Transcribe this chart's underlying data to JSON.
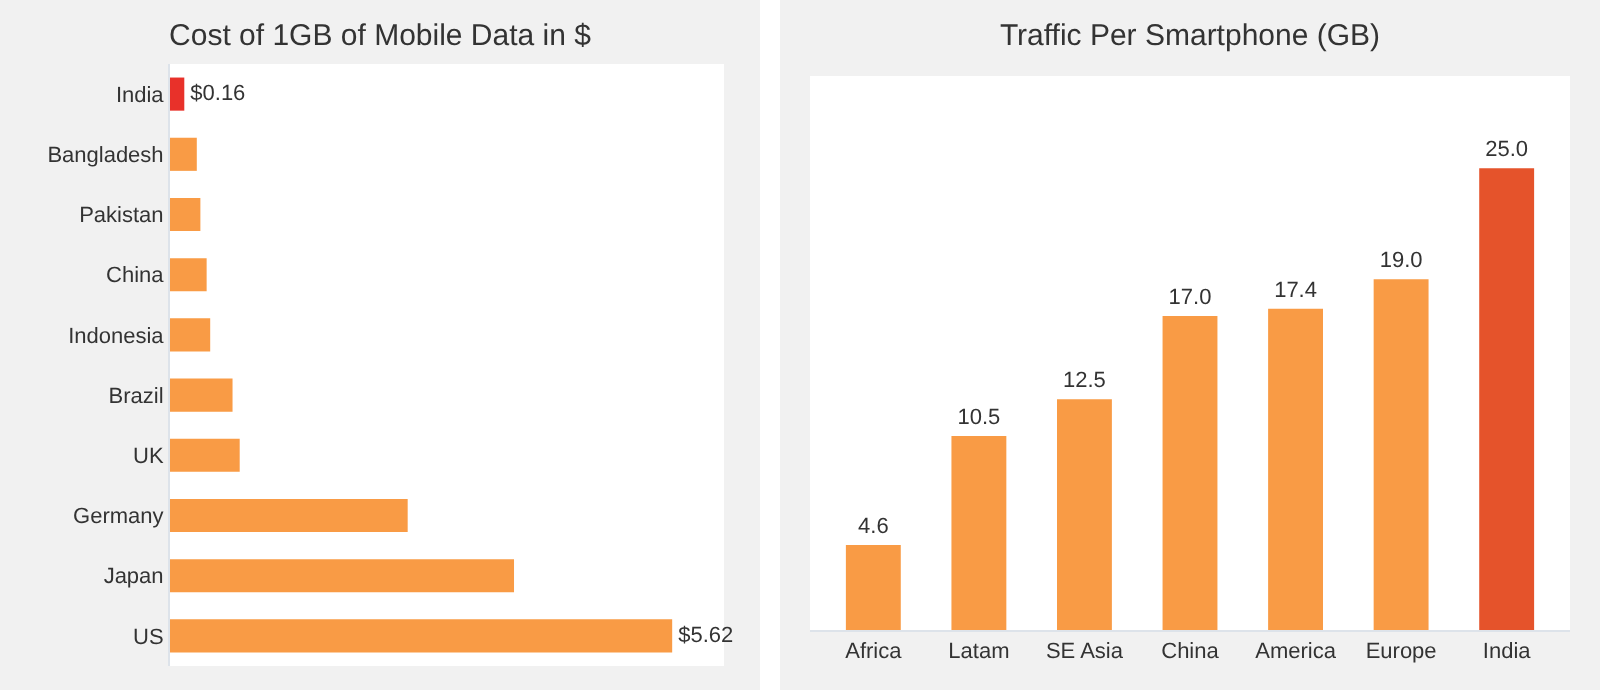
{
  "chart_data": [
    {
      "type": "bar",
      "title": "Cost of 1GB of Mobile Data in $",
      "orientation": "horizontal",
      "categories": [
        "India",
        "Bangladesh",
        "Pakistan",
        "China",
        "Indonesia",
        "Brazil",
        "UK",
        "Germany",
        "Japan",
        "US"
      ],
      "values": [
        0.16,
        0.3,
        0.34,
        0.41,
        0.45,
        0.7,
        0.78,
        2.66,
        3.85,
        5.62
      ],
      "colors": [
        "#e8312a",
        "#f99b45",
        "#f99b45",
        "#f99b45",
        "#f99b45",
        "#f99b45",
        "#f99b45",
        "#f99b45",
        "#f99b45",
        "#f99b45"
      ],
      "value_labels": [
        "$0.16",
        null,
        null,
        null,
        null,
        null,
        null,
        null,
        null,
        "$5.62"
      ],
      "xlim": [
        0,
        6.2
      ]
    },
    {
      "type": "bar",
      "title": "Traffic Per Smartphone (GB)",
      "categories": [
        "Africa",
        "Latam",
        "SE Asia",
        "China",
        "America",
        "Europe",
        "India"
      ],
      "values": [
        4.6,
        10.5,
        12.5,
        17.0,
        17.4,
        19.0,
        25.0
      ],
      "colors": [
        "#f99b45",
        "#f99b45",
        "#f99b45",
        "#f99b45",
        "#f99b45",
        "#f99b45",
        "#e5532b"
      ],
      "value_labels": [
        "4.6",
        "10.5",
        "12.5",
        "17.0",
        "17.4",
        "19.0",
        "25.0"
      ],
      "ylim": [
        0,
        30
      ]
    }
  ]
}
